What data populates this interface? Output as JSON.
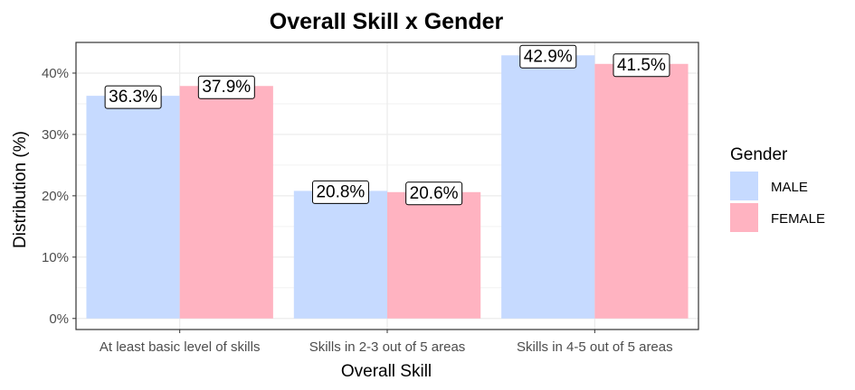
{
  "chart_data": {
    "type": "bar",
    "title": "Overall Skill x Gender",
    "xlabel": "Overall Skill",
    "ylabel": "Distribution (%)",
    "categories": [
      "At least basic level of skills",
      "Skills in 2-3 out of 5 areas",
      "Skills in 4-5 out of 5 areas"
    ],
    "series": [
      {
        "name": "MALE",
        "color": "#c6daff",
        "values": [
          36.3,
          20.8,
          42.9
        ],
        "labels": [
          "36.3%",
          "20.8%",
          "42.9%"
        ]
      },
      {
        "name": "FEMALE",
        "color": "#ffb3c1",
        "values": [
          37.9,
          20.6,
          41.5
        ],
        "labels": [
          "37.9%",
          "20.6%",
          "41.5%"
        ]
      }
    ],
    "ylim": [
      -1.8,
      45
    ],
    "yticks": [
      0,
      10,
      20,
      30,
      40
    ],
    "ytick_labels": [
      "0%",
      "10%",
      "20%",
      "30%",
      "40%"
    ],
    "legend": {
      "title": "Gender",
      "position": "right"
    },
    "grid": true
  }
}
